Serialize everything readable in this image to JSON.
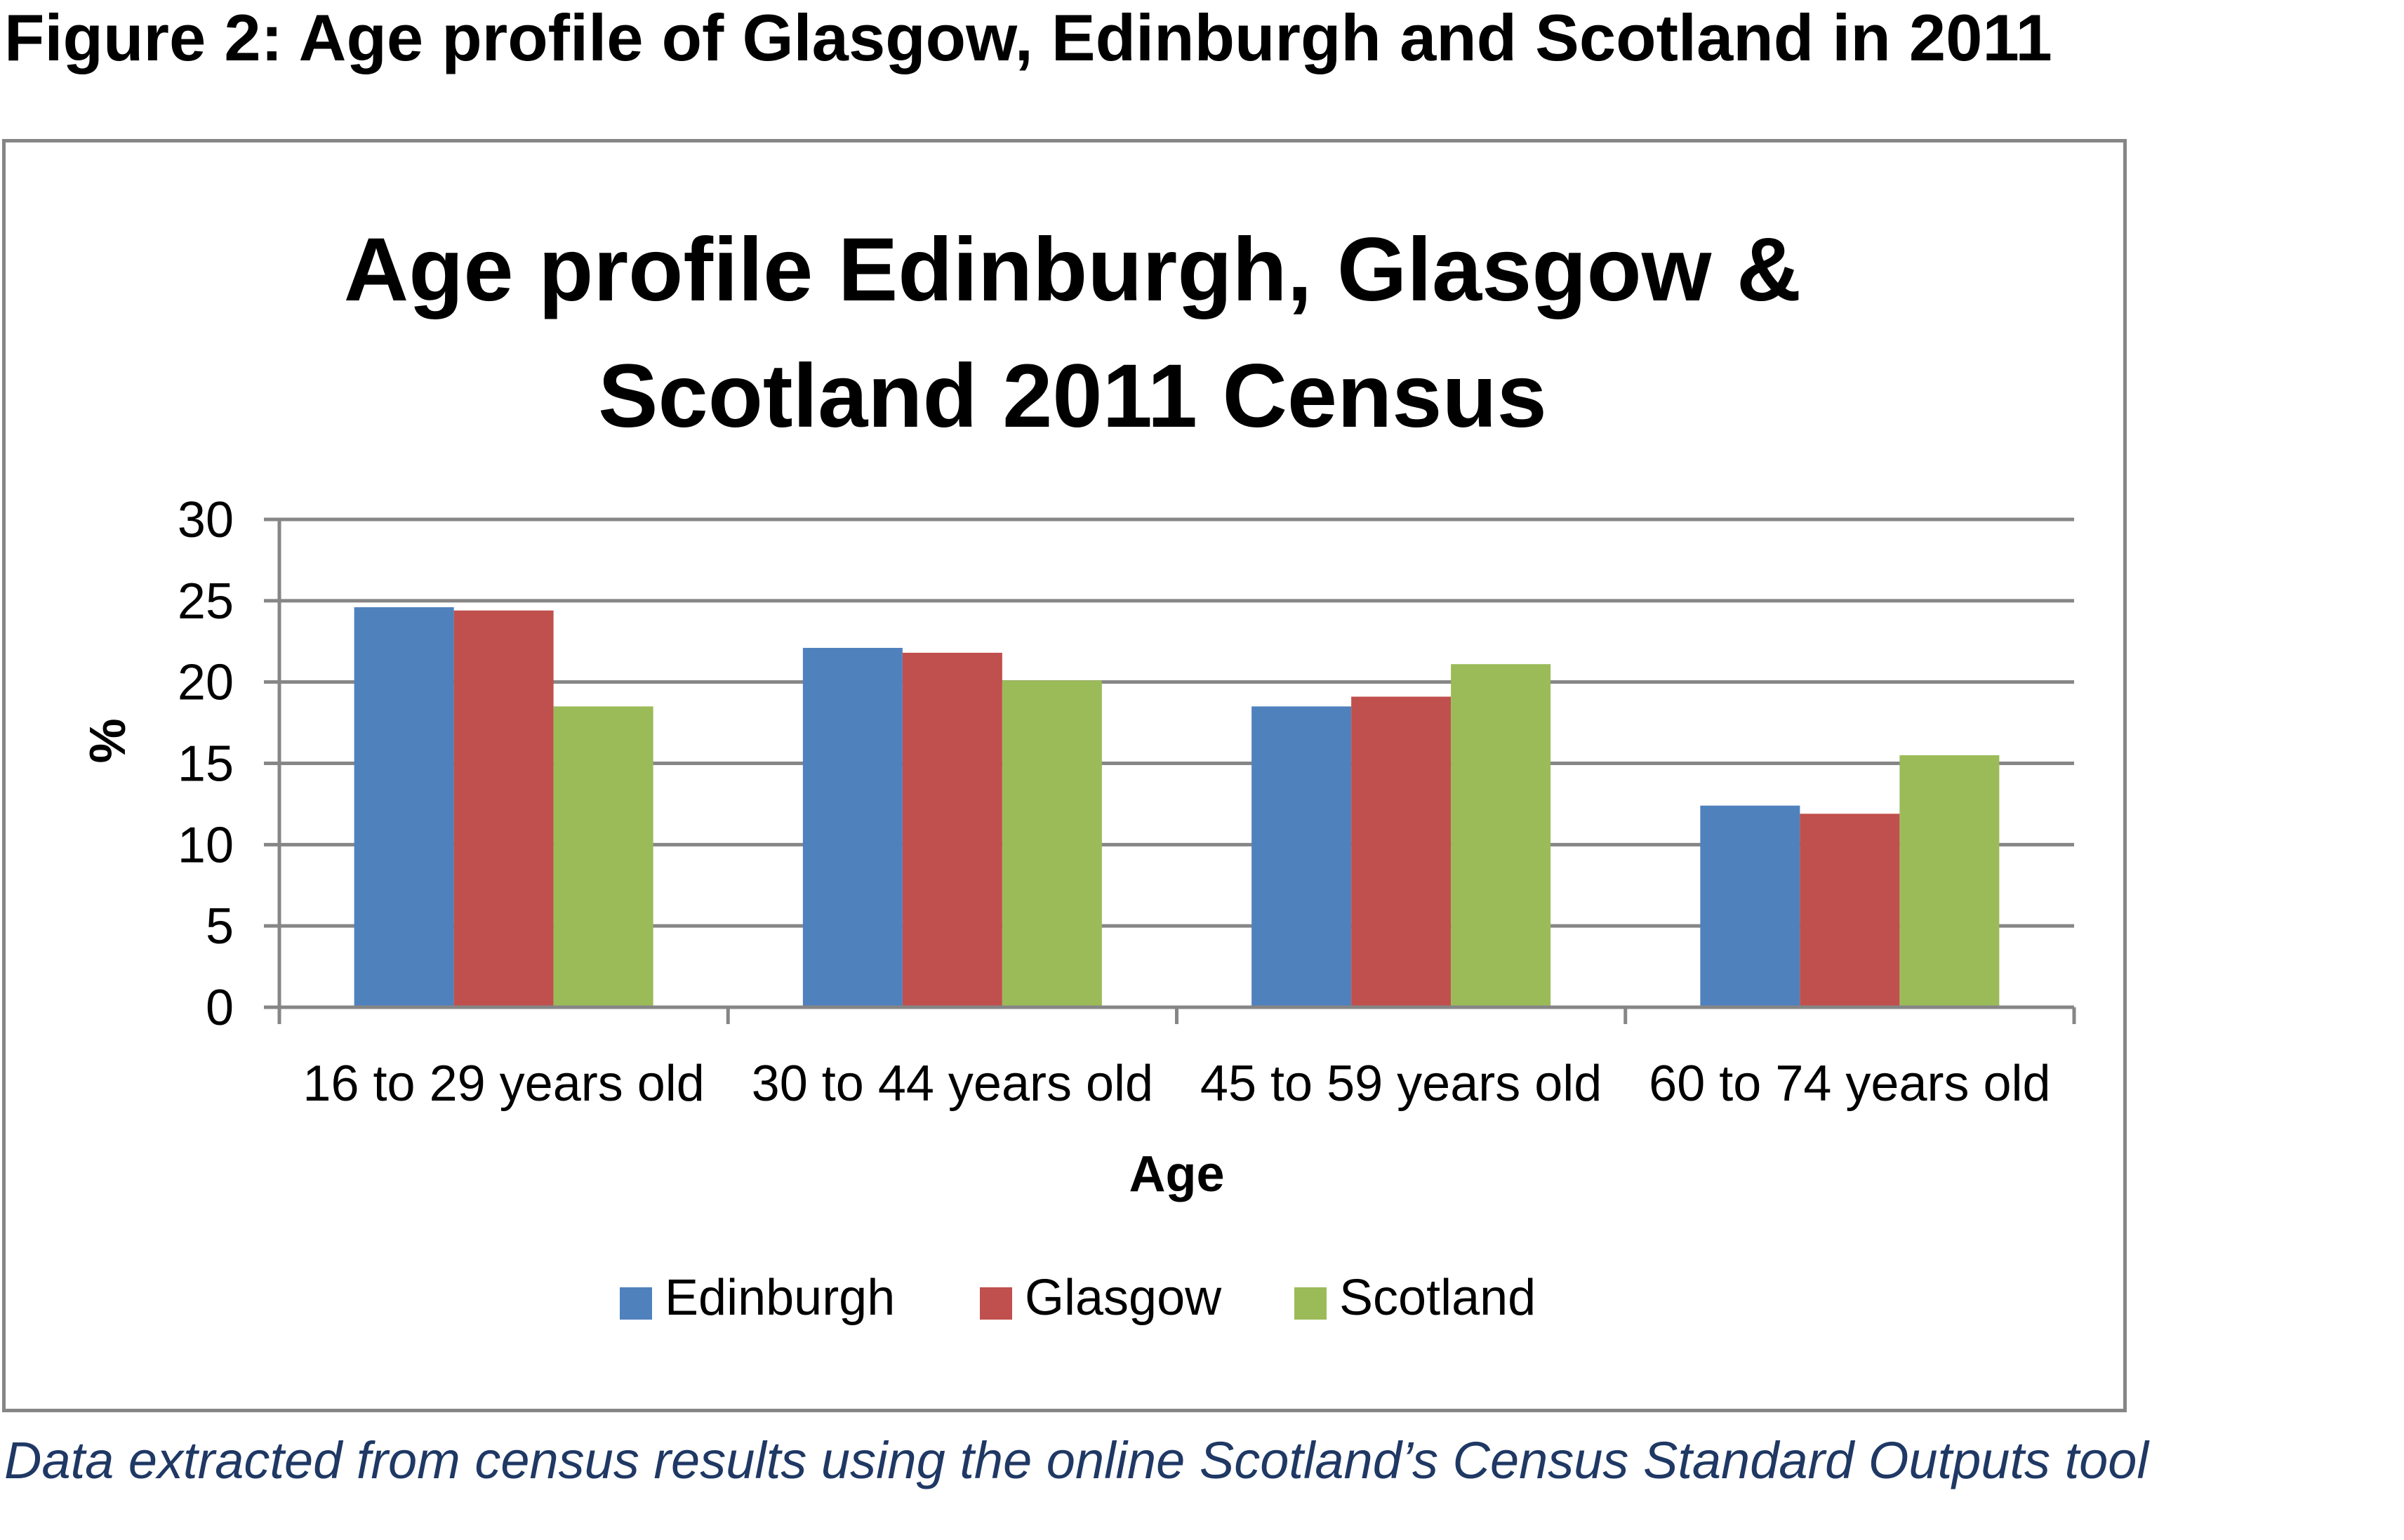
{
  "figure_title": "Figure 2: Age profile of Glasgow, Edinburgh and Scotland in 2011",
  "caption": "Data extracted from census results using the online Scotland’s Census Standard Outputs tool",
  "colors": {
    "edinburgh": "#4f81bd",
    "glasgow": "#c0504d",
    "scotland": "#9bbb59",
    "gridline": "#868686",
    "axis": "#868686"
  },
  "chart_data": {
    "type": "bar",
    "title_lines": [
      "Age profile Edinburgh, Glasgow &",
      "Scotland 2011 Census"
    ],
    "xlabel": "Age",
    "ylabel": "%",
    "ylim": [
      0,
      30
    ],
    "yticks": [
      0,
      5,
      10,
      15,
      20,
      25,
      30
    ],
    "grid": true,
    "legend_position": "bottom",
    "categories": [
      "16 to 29 years old",
      "30 to 44 years old",
      "45 to 59 years old",
      "60 to 74 years old"
    ],
    "series": [
      {
        "name": "Edinburgh",
        "color": "#4f81bd",
        "values": [
          24.6,
          22.1,
          18.5,
          12.4
        ]
      },
      {
        "name": "Glasgow",
        "color": "#c0504d",
        "values": [
          24.4,
          21.8,
          19.1,
          11.9
        ]
      },
      {
        "name": "Scotland",
        "color": "#9bbb59",
        "values": [
          18.5,
          20.1,
          21.1,
          15.5
        ]
      }
    ]
  }
}
